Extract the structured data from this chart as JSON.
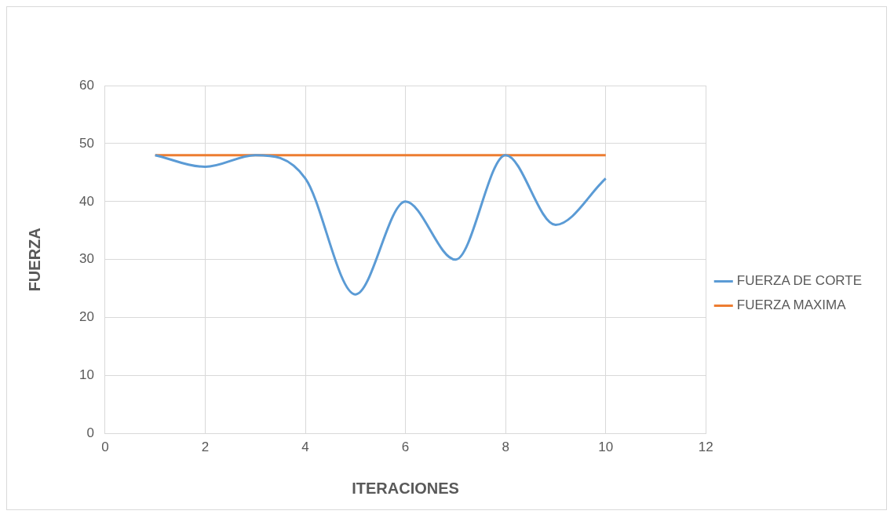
{
  "chart_data": {
    "type": "line",
    "xlabel": "ITERACIONES",
    "ylabel": "FUERZA",
    "x": [
      1,
      2,
      3,
      4,
      5,
      6,
      7,
      8,
      9,
      10
    ],
    "series": [
      {
        "name": "FUERZA DE CORTE",
        "color": "#5b9bd5",
        "values": [
          48,
          46,
          48,
          44,
          24,
          40,
          30,
          48,
          36,
          44
        ]
      },
      {
        "name": "FUERZA MAXIMA",
        "color": "#ed7d31",
        "values": [
          48,
          48,
          48,
          48,
          48,
          48,
          48,
          48,
          48,
          48
        ]
      }
    ],
    "xlim": [
      0,
      12
    ],
    "xticks": [
      0,
      2,
      4,
      6,
      8,
      10,
      12
    ],
    "ylim": [
      0,
      60
    ],
    "yticks": [
      0,
      10,
      20,
      30,
      40,
      50,
      60
    ],
    "grid": true,
    "legend": "right",
    "marker": "none",
    "line_style": "solid"
  }
}
